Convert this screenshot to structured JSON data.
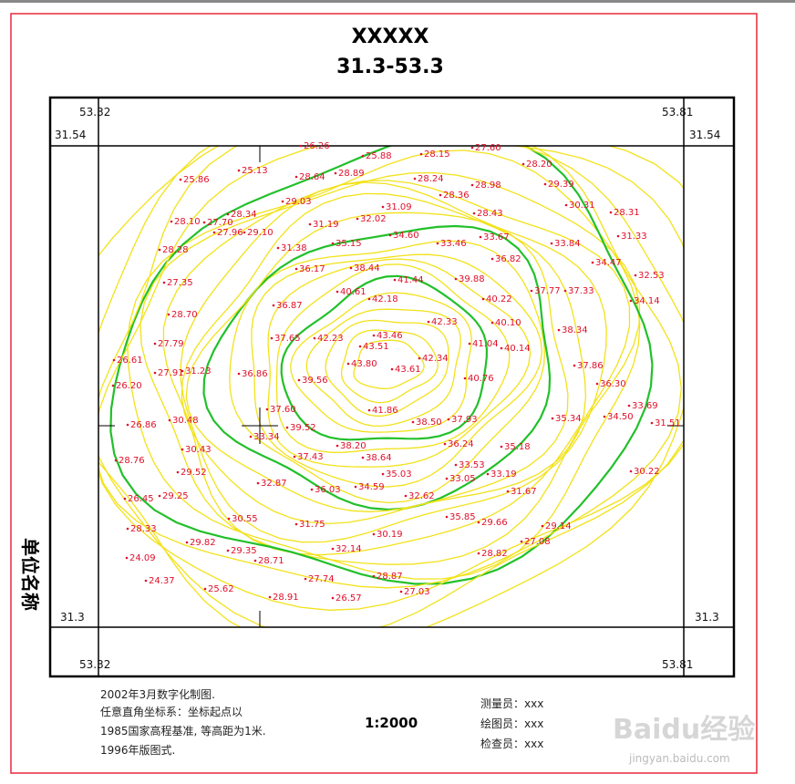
{
  "header": {
    "title": "XXXXX",
    "subtitle": "31.3-53.3"
  },
  "frame": {
    "top_left_x": "53.32",
    "top_right_x": "53.81",
    "left_top_y": "31.54",
    "right_top_y": "31.54",
    "left_bottom_y": "31.3",
    "right_bottom_y": "31.3",
    "bottom_left_x": "53.32",
    "bottom_right_x": "53.81"
  },
  "side_label": "单位名称",
  "spots": [
    "26.26",
    "25.88",
    "28.15",
    "27.60",
    "25.86",
    "25.13",
    "28.64",
    "28.89",
    "28.24",
    "28.20",
    "28.98",
    "28.36",
    "29.39",
    "29.03",
    "31.09",
    "28.43",
    "30.31",
    "28.31",
    "28.10",
    "27.70",
    "28.34",
    "27.96",
    "29.10",
    "31.19",
    "32.02",
    "34.60",
    "33.46",
    "33.67",
    "33.84",
    "31.33",
    "28.28",
    "31.38",
    "35.15",
    "36.82",
    "34.47",
    "32.53",
    "36.17",
    "38.44",
    "41.44",
    "39.88",
    "27.35",
    "37.77",
    "37.33",
    "34.14",
    "40.61",
    "42.18",
    "40.22",
    "36.87",
    "28.70",
    "42.33",
    "40.10",
    "38.34",
    "27.79",
    "37.65",
    "42.23",
    "43.46",
    "43.51",
    "41.04",
    "40.14",
    "26.61",
    "27.91",
    "31.23",
    "36.86",
    "43.80",
    "43.61",
    "42.34",
    "37.86",
    "26.20",
    "39.56",
    "40.76",
    "36.30",
    "37.60",
    "33.69",
    "26.86",
    "30.48",
    "39.52",
    "41.86",
    "38.50",
    "37.93",
    "35.34",
    "34.50",
    "31.51",
    "33.34",
    "38.20",
    "36.24",
    "35.18",
    "30.43",
    "28.76",
    "37.43",
    "38.64",
    "33.53",
    "29.52",
    "35.03",
    "33.05",
    "33.19",
    "30.22",
    "32.87",
    "36.03",
    "34.59",
    "32.62",
    "31.67",
    "26.45",
    "29.25",
    "30.55",
    "31.75",
    "35.85",
    "29.66",
    "29.14",
    "28.33",
    "30.19",
    "29.82",
    "27.08",
    "29.35",
    "32.14",
    "28.82",
    "24.09",
    "28.71",
    "24.37",
    "27.74",
    "28.87",
    "25.62",
    "28.91",
    "26.57",
    "27.03"
  ],
  "notes": [
    "2002年3月数字化制图.",
    "任意直角坐标系：坐标起点以",
    "1985国家高程基准, 等高距为1米.",
    "1996年版图式."
  ],
  "scale": "1:2000",
  "staff": [
    "测量员：xxx",
    "绘图员：xxx",
    "检查员：xxx"
  ],
  "watermark": {
    "brand": "Baidu经验",
    "url": "jingyan.baidu.com"
  }
}
